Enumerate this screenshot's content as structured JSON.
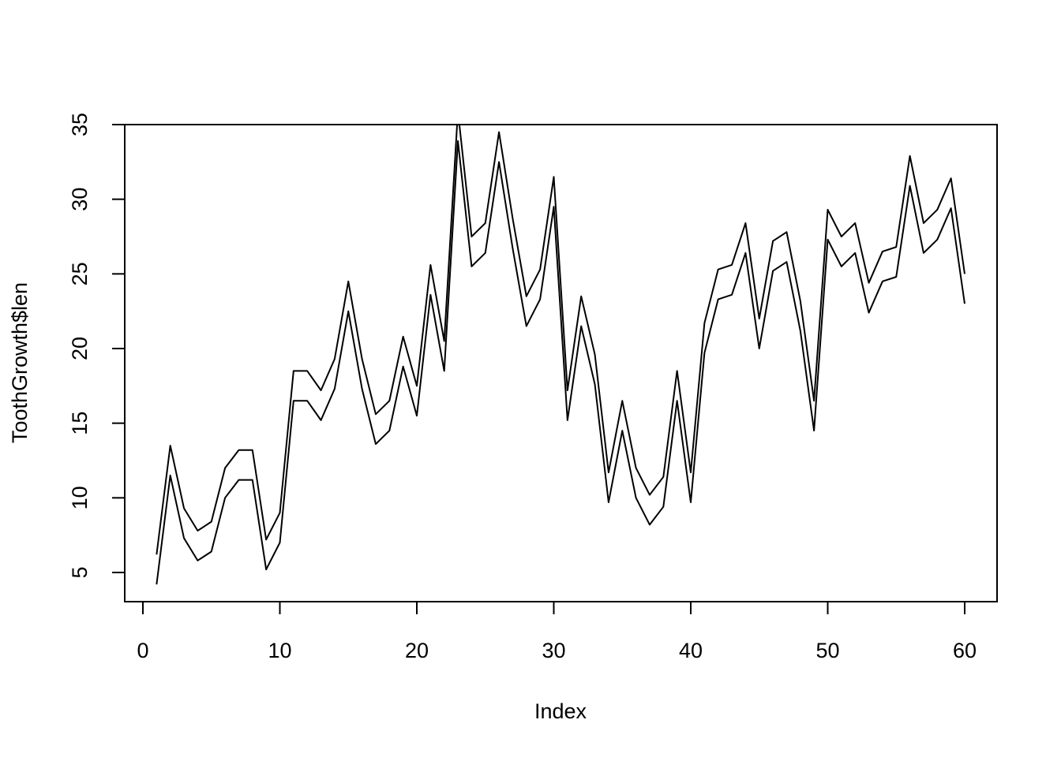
{
  "chart_data": {
    "type": "line",
    "title": "",
    "xlabel": "Index",
    "ylabel": "ToothGrowth$len",
    "xlim": [
      0,
      60
    ],
    "ylim": [
      5,
      35
    ],
    "x_ticks": [
      0,
      10,
      20,
      30,
      40,
      50,
      60
    ],
    "y_ticks": [
      5,
      10,
      15,
      20,
      25,
      30,
      35
    ],
    "grid": false,
    "x": [
      1,
      2,
      3,
      4,
      5,
      6,
      7,
      8,
      9,
      10,
      11,
      12,
      13,
      14,
      15,
      16,
      17,
      18,
      19,
      20,
      21,
      22,
      23,
      24,
      25,
      26,
      27,
      28,
      29,
      30,
      31,
      32,
      33,
      34,
      35,
      36,
      37,
      38,
      39,
      40,
      41,
      42,
      43,
      44,
      45,
      46,
      47,
      48,
      49,
      50,
      51,
      52,
      53,
      54,
      55,
      56,
      57,
      58,
      59,
      60
    ],
    "series": [
      {
        "values": [
          4.2,
          11.5,
          7.3,
          5.8,
          6.4,
          10,
          11.2,
          11.2,
          5.2,
          7,
          16.5,
          16.5,
          15.2,
          17.3,
          22.5,
          17.3,
          13.6,
          14.5,
          18.8,
          15.5,
          23.6,
          18.5,
          33.9,
          25.5,
          26.4,
          32.5,
          26.7,
          21.5,
          23.3,
          29.5,
          15.2,
          21.5,
          17.6,
          9.7,
          14.5,
          10,
          8.2,
          9.4,
          16.5,
          9.7,
          19.7,
          23.3,
          23.6,
          26.4,
          20,
          25.2,
          25.8,
          21.2,
          14.5,
          27.3,
          25.5,
          26.4,
          22.4,
          24.5,
          24.8,
          30.9,
          26.4,
          27.3,
          29.4,
          23
        ]
      },
      {
        "values": [
          6.2,
          13.5,
          9.3,
          7.8,
          8.4,
          12,
          13.2,
          13.2,
          7.2,
          9,
          18.5,
          18.5,
          17.2,
          19.3,
          24.5,
          19.3,
          15.6,
          16.5,
          20.8,
          17.5,
          25.6,
          20.5,
          35.9,
          27.5,
          28.4,
          34.5,
          28.7,
          23.5,
          25.3,
          31.5,
          17.2,
          23.5,
          19.6,
          11.7,
          16.5,
          12,
          10.2,
          11.4,
          18.5,
          11.7,
          21.7,
          25.3,
          25.6,
          28.4,
          22,
          27.2,
          27.8,
          23.2,
          16.5,
          29.3,
          27.5,
          28.4,
          24.4,
          26.5,
          26.8,
          32.9,
          28.4,
          29.3,
          31.4,
          25
        ]
      }
    ]
  }
}
